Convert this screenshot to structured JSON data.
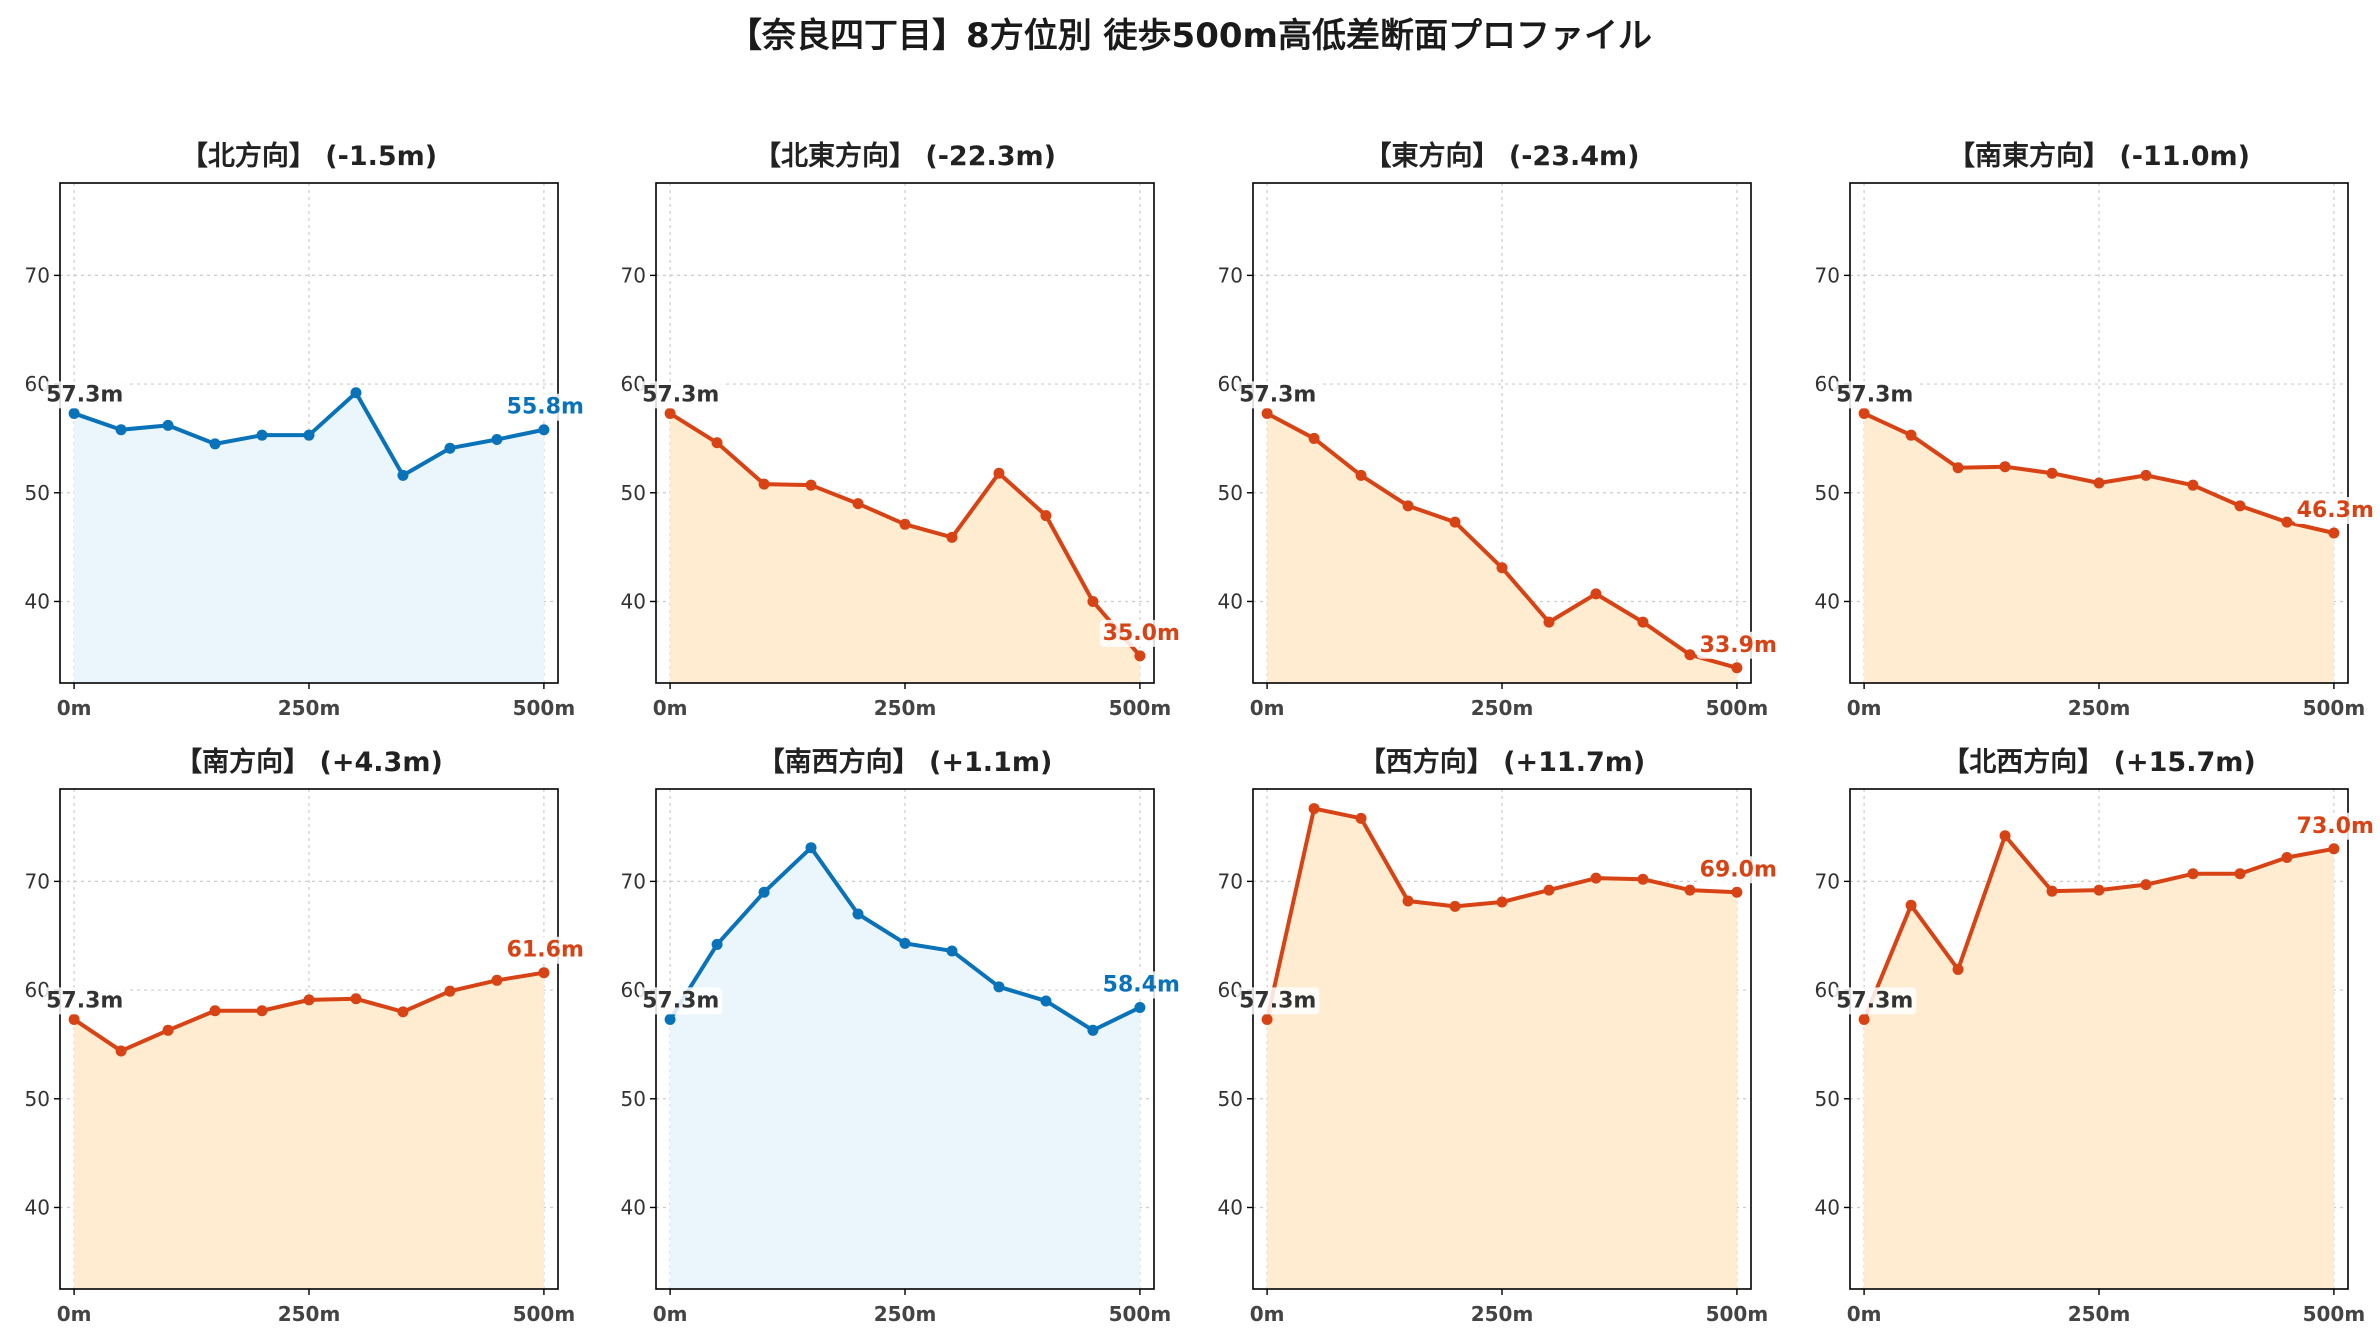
{
  "title": "【奈良四丁目】8方位別 徒歩500m高低差断面プロファイル",
  "colors": {
    "downhill_line": "#d84315",
    "downhill_fill": "#ffecd1",
    "flat_line": "#0a72b8",
    "flat_fill": "#eaf6fc",
    "start_label": "#333333",
    "grid": "#cccccc",
    "axes": "#000000"
  },
  "chart_data": [
    {
      "type": "area",
      "title": "【北方向】 (-1.5m)",
      "style": "flat",
      "x": [
        0,
        50,
        100,
        150,
        200,
        250,
        300,
        350,
        400,
        450,
        500
      ],
      "y": [
        57.3,
        55.8,
        56.2,
        54.5,
        55.3,
        55.3,
        59.2,
        51.6,
        54.1,
        54.9,
        55.8
      ],
      "start_label": "57.3m",
      "end_label": "55.8m",
      "xticks": [
        0,
        250,
        500
      ],
      "xtick_labels": [
        "0m",
        "250m",
        "500m"
      ],
      "yticks": [
        40,
        50,
        60,
        70
      ],
      "ytick_labels": [
        "40",
        "50",
        "60",
        "70"
      ],
      "xlim": [
        -15,
        515
      ],
      "ylim": [
        32.5,
        78.5
      ],
      "grid": true
    },
    {
      "type": "area",
      "title": "【北東方向】 (-22.3m)",
      "style": "down",
      "x": [
        0,
        50,
        100,
        150,
        200,
        250,
        300,
        350,
        400,
        450,
        500
      ],
      "y": [
        57.3,
        54.6,
        50.8,
        50.7,
        49.0,
        47.1,
        45.9,
        51.8,
        47.9,
        40.0,
        35.0
      ],
      "start_label": "57.3m",
      "end_label": "35.0m",
      "xticks": [
        0,
        250,
        500
      ],
      "xtick_labels": [
        "0m",
        "250m",
        "500m"
      ],
      "yticks": [
        40,
        50,
        60,
        70
      ],
      "ytick_labels": [
        "40",
        "50",
        "60",
        "70"
      ],
      "xlim": [
        -15,
        515
      ],
      "ylim": [
        32.5,
        78.5
      ],
      "grid": true
    },
    {
      "type": "area",
      "title": "【東方向】 (-23.4m)",
      "style": "down",
      "x": [
        0,
        50,
        100,
        150,
        200,
        250,
        300,
        350,
        400,
        450,
        500
      ],
      "y": [
        57.3,
        55.0,
        51.6,
        48.8,
        47.3,
        43.1,
        38.1,
        40.7,
        38.1,
        35.1,
        33.9
      ],
      "start_label": "57.3m",
      "end_label": "33.9m",
      "xticks": [
        0,
        250,
        500
      ],
      "xtick_labels": [
        "0m",
        "250m",
        "500m"
      ],
      "yticks": [
        40,
        50,
        60,
        70
      ],
      "ytick_labels": [
        "40",
        "50",
        "60",
        "70"
      ],
      "xlim": [
        -15,
        515
      ],
      "ylim": [
        32.5,
        78.5
      ],
      "grid": true
    },
    {
      "type": "area",
      "title": "【南東方向】 (-11.0m)",
      "style": "down",
      "x": [
        0,
        50,
        100,
        150,
        200,
        250,
        300,
        350,
        400,
        450,
        500
      ],
      "y": [
        57.3,
        55.3,
        52.3,
        52.4,
        51.8,
        50.9,
        51.6,
        50.7,
        48.8,
        47.3,
        46.3
      ],
      "start_label": "57.3m",
      "end_label": "46.3m",
      "xticks": [
        0,
        250,
        500
      ],
      "xtick_labels": [
        "0m",
        "250m",
        "500m"
      ],
      "yticks": [
        40,
        50,
        60,
        70
      ],
      "ytick_labels": [
        "40",
        "50",
        "60",
        "70"
      ],
      "xlim": [
        -15,
        515
      ],
      "ylim": [
        32.5,
        78.5
      ],
      "grid": true
    },
    {
      "type": "area",
      "title": "【南方向】 (+4.3m)",
      "style": "down",
      "x": [
        0,
        50,
        100,
        150,
        200,
        250,
        300,
        350,
        400,
        450,
        500
      ],
      "y": [
        57.3,
        54.4,
        56.3,
        58.1,
        58.1,
        59.1,
        59.2,
        58.0,
        59.9,
        60.9,
        61.6
      ],
      "start_label": "57.3m",
      "end_label": "61.6m",
      "xticks": [
        0,
        250,
        500
      ],
      "xtick_labels": [
        "0m",
        "250m",
        "500m"
      ],
      "yticks": [
        40,
        50,
        60,
        70
      ],
      "ytick_labels": [
        "40",
        "50",
        "60",
        "70"
      ],
      "xlim": [
        -15,
        515
      ],
      "ylim": [
        32.5,
        78.5
      ],
      "grid": true
    },
    {
      "type": "area",
      "title": "【南西方向】 (+1.1m)",
      "style": "flat",
      "x": [
        0,
        50,
        100,
        150,
        200,
        250,
        300,
        350,
        400,
        450,
        500
      ],
      "y": [
        57.3,
        64.2,
        69.0,
        73.1,
        67.0,
        64.3,
        63.6,
        60.3,
        59.0,
        56.3,
        58.4
      ],
      "start_label": "57.3m",
      "end_label": "58.4m",
      "xticks": [
        0,
        250,
        500
      ],
      "xtick_labels": [
        "0m",
        "250m",
        "500m"
      ],
      "yticks": [
        40,
        50,
        60,
        70
      ],
      "ytick_labels": [
        "40",
        "50",
        "60",
        "70"
      ],
      "xlim": [
        -15,
        515
      ],
      "ylim": [
        32.5,
        78.5
      ],
      "grid": true
    },
    {
      "type": "area",
      "title": "【西方向】 (+11.7m)",
      "style": "down",
      "x": [
        0,
        50,
        100,
        150,
        200,
        250,
        300,
        350,
        400,
        450,
        500
      ],
      "y": [
        57.3,
        76.7,
        75.8,
        68.2,
        67.7,
        68.1,
        69.2,
        70.3,
        70.2,
        69.2,
        69.0
      ],
      "start_label": "57.3m",
      "end_label": "69.0m",
      "xticks": [
        0,
        250,
        500
      ],
      "xtick_labels": [
        "0m",
        "250m",
        "500m"
      ],
      "yticks": [
        40,
        50,
        60,
        70
      ],
      "ytick_labels": [
        "40",
        "50",
        "60",
        "70"
      ],
      "xlim": [
        -15,
        515
      ],
      "ylim": [
        32.5,
        78.5
      ],
      "grid": true
    },
    {
      "type": "area",
      "title": "【北西方向】 (+15.7m)",
      "style": "down",
      "x": [
        0,
        50,
        100,
        150,
        200,
        250,
        300,
        350,
        400,
        450,
        500
      ],
      "y": [
        57.3,
        67.8,
        61.9,
        74.2,
        69.1,
        69.2,
        69.7,
        70.7,
        70.7,
        72.2,
        73.0
      ],
      "start_label": "57.3m",
      "end_label": "73.0m",
      "xticks": [
        0,
        250,
        500
      ],
      "xtick_labels": [
        "0m",
        "250m",
        "500m"
      ],
      "yticks": [
        40,
        50,
        60,
        70
      ],
      "ytick_labels": [
        "40",
        "50",
        "60",
        "70"
      ],
      "xlim": [
        -15,
        515
      ],
      "ylim": [
        32.5,
        78.5
      ],
      "grid": true
    }
  ]
}
